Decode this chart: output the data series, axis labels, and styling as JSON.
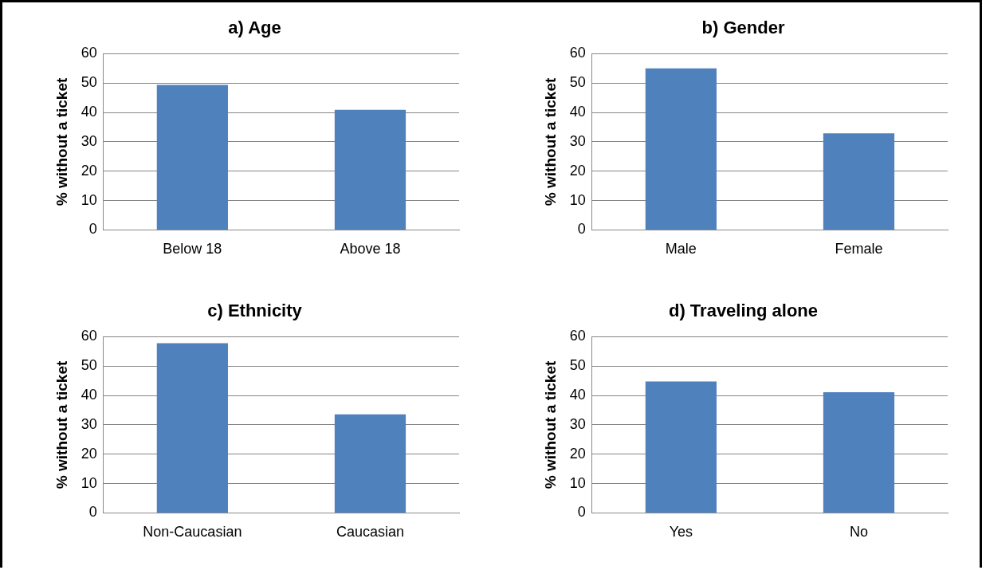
{
  "chart_data": [
    {
      "type": "bar",
      "title": "a) Age",
      "ylabel": "% without a ticket",
      "categories": [
        "Below 18",
        "Above 18"
      ],
      "values": [
        49.4,
        40.9
      ],
      "color": "#4f81bd",
      "ylim": [
        0,
        60
      ],
      "yticks": [
        0,
        10,
        20,
        30,
        40,
        50,
        60
      ],
      "grid": "y"
    },
    {
      "type": "bar",
      "title": "b) Gender",
      "ylabel": "% without a ticket",
      "categories": [
        "Male",
        "Female"
      ],
      "values": [
        55.0,
        32.9
      ],
      "color": "#4f81bd",
      "ylim": [
        0,
        60
      ],
      "yticks": [
        0,
        10,
        20,
        30,
        40,
        50,
        60
      ],
      "grid": "y"
    },
    {
      "type": "bar",
      "title": "c) Ethnicity",
      "ylabel": "% without a ticket",
      "categories": [
        "Non-Caucasian",
        "Caucasian"
      ],
      "values": [
        57.8,
        33.6
      ],
      "color": "#4f81bd",
      "ylim": [
        0,
        60
      ],
      "yticks": [
        0,
        10,
        20,
        30,
        40,
        50,
        60
      ],
      "grid": "y"
    },
    {
      "type": "bar",
      "title": "d) Traveling alone",
      "ylabel": "% without a ticket",
      "categories": [
        "Yes",
        "No"
      ],
      "values": [
        44.8,
        41.1
      ],
      "color": "#4f81bd",
      "ylim": [
        0,
        60
      ],
      "yticks": [
        0,
        10,
        20,
        30,
        40,
        50,
        60
      ],
      "grid": "y"
    }
  ]
}
